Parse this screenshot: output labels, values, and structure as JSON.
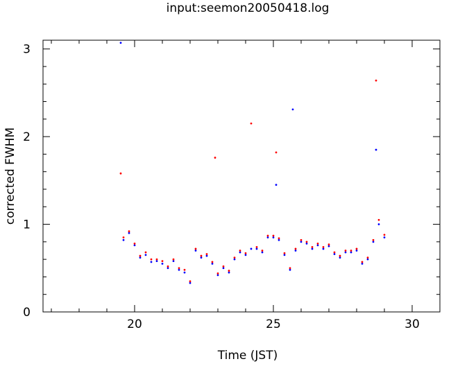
{
  "chart_data": {
    "type": "scatter",
    "title": "input:seemon20050418.log",
    "xlabel": "Time (JST)",
    "ylabel": "corrected FWHM",
    "xlim": [
      16.7,
      31.0
    ],
    "ylim": [
      0,
      3.1
    ],
    "xticks": [
      20,
      25,
      30
    ],
    "yticks": [
      0,
      1,
      2,
      3
    ],
    "xtick_labels": [
      "20",
      "25",
      "30"
    ],
    "ytick_labels": [
      "0",
      "1",
      "2",
      "3"
    ],
    "grid": false,
    "legend": "none",
    "series": [
      {
        "color": "#0000ff",
        "points": [
          [
            19.5,
            3.07
          ],
          [
            19.6,
            0.82
          ],
          [
            19.8,
            0.9
          ],
          [
            20.0,
            0.76
          ],
          [
            20.2,
            0.62
          ],
          [
            20.4,
            0.65
          ],
          [
            20.6,
            0.57
          ],
          [
            20.8,
            0.58
          ],
          [
            21.0,
            0.55
          ],
          [
            21.2,
            0.5
          ],
          [
            21.4,
            0.58
          ],
          [
            21.6,
            0.48
          ],
          [
            21.8,
            0.45
          ],
          [
            22.0,
            0.33
          ],
          [
            22.2,
            0.7
          ],
          [
            22.4,
            0.62
          ],
          [
            22.6,
            0.64
          ],
          [
            22.8,
            0.55
          ],
          [
            23.0,
            0.42
          ],
          [
            23.2,
            0.5
          ],
          [
            23.4,
            0.45
          ],
          [
            23.6,
            0.6
          ],
          [
            23.8,
            0.68
          ],
          [
            24.0,
            0.65
          ],
          [
            24.2,
            0.72
          ],
          [
            24.4,
            0.72
          ],
          [
            24.6,
            0.68
          ],
          [
            24.8,
            0.85
          ],
          [
            25.0,
            0.85
          ],
          [
            25.1,
            1.45
          ],
          [
            25.2,
            0.82
          ],
          [
            25.4,
            0.65
          ],
          [
            25.6,
            0.48
          ],
          [
            25.7,
            2.31
          ],
          [
            25.8,
            0.7
          ],
          [
            26.0,
            0.8
          ],
          [
            26.2,
            0.78
          ],
          [
            26.4,
            0.72
          ],
          [
            26.6,
            0.76
          ],
          [
            26.8,
            0.72
          ],
          [
            27.0,
            0.75
          ],
          [
            27.2,
            0.66
          ],
          [
            27.4,
            0.62
          ],
          [
            27.6,
            0.68
          ],
          [
            27.8,
            0.68
          ],
          [
            28.0,
            0.7
          ],
          [
            28.2,
            0.55
          ],
          [
            28.4,
            0.6
          ],
          [
            28.6,
            0.8
          ],
          [
            28.7,
            1.85
          ],
          [
            28.8,
            1.0
          ],
          [
            29.0,
            0.85
          ]
        ]
      },
      {
        "color": "#ff0000",
        "points": [
          [
            19.5,
            1.58
          ],
          [
            19.6,
            0.85
          ],
          [
            19.8,
            0.92
          ],
          [
            20.0,
            0.78
          ],
          [
            20.2,
            0.64
          ],
          [
            20.4,
            0.68
          ],
          [
            20.6,
            0.6
          ],
          [
            20.8,
            0.6
          ],
          [
            21.0,
            0.58
          ],
          [
            21.2,
            0.52
          ],
          [
            21.4,
            0.6
          ],
          [
            21.6,
            0.5
          ],
          [
            21.8,
            0.48
          ],
          [
            22.0,
            0.35
          ],
          [
            22.2,
            0.72
          ],
          [
            22.4,
            0.64
          ],
          [
            22.6,
            0.66
          ],
          [
            22.8,
            0.57
          ],
          [
            22.9,
            1.76
          ],
          [
            23.0,
            0.44
          ],
          [
            23.2,
            0.52
          ],
          [
            23.4,
            0.47
          ],
          [
            23.6,
            0.62
          ],
          [
            23.8,
            0.7
          ],
          [
            24.0,
            0.67
          ],
          [
            24.2,
            2.15
          ],
          [
            24.4,
            0.74
          ],
          [
            24.6,
            0.7
          ],
          [
            24.8,
            0.87
          ],
          [
            25.0,
            0.87
          ],
          [
            25.1,
            1.82
          ],
          [
            25.2,
            0.84
          ],
          [
            25.4,
            0.67
          ],
          [
            25.6,
            0.5
          ],
          [
            25.8,
            0.72
          ],
          [
            26.0,
            0.82
          ],
          [
            26.2,
            0.8
          ],
          [
            26.4,
            0.74
          ],
          [
            26.6,
            0.78
          ],
          [
            26.8,
            0.74
          ],
          [
            27.0,
            0.77
          ],
          [
            27.2,
            0.68
          ],
          [
            27.4,
            0.64
          ],
          [
            27.6,
            0.7
          ],
          [
            27.8,
            0.7
          ],
          [
            28.0,
            0.72
          ],
          [
            28.2,
            0.57
          ],
          [
            28.4,
            0.62
          ],
          [
            28.6,
            0.82
          ],
          [
            28.7,
            2.64
          ],
          [
            28.8,
            1.05
          ],
          [
            29.0,
            0.88
          ]
        ]
      }
    ]
  }
}
